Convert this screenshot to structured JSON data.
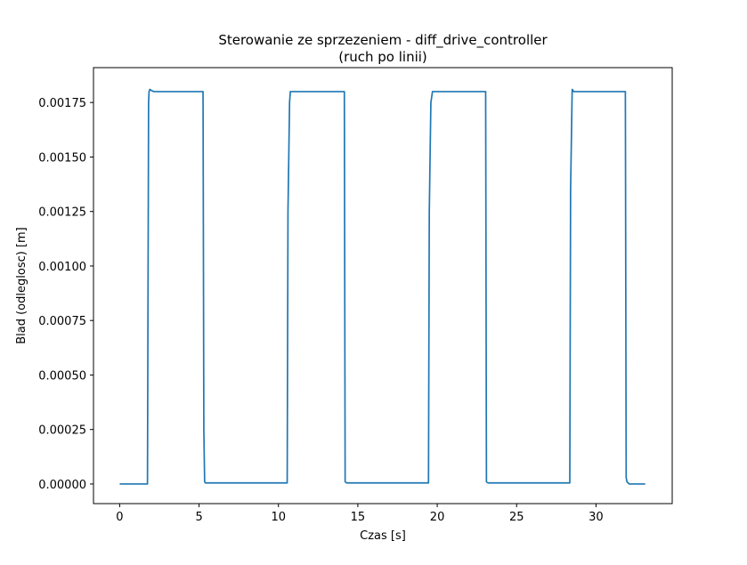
{
  "chart_data": {
    "type": "line",
    "title_line1": "Sterowanie ze sprzezeniem - diff_drive_controller",
    "title_line2": "(ruch po linii)",
    "xlabel": "Czas [s]",
    "ylabel": "Blad (odleglosc) [m]",
    "xlim": [
      -1.65,
      34.8
    ],
    "ylim": [
      -9e-05,
      0.00191
    ],
    "xticks": [
      0,
      5,
      10,
      15,
      20,
      25,
      30
    ],
    "xtick_labels": [
      "0",
      "5",
      "10",
      "15",
      "20",
      "25",
      "30"
    ],
    "yticks": [
      0,
      0.00025,
      0.0005,
      0.00075,
      0.001,
      0.00125,
      0.0015,
      0.00175
    ],
    "ytick_labels": [
      "0.00000",
      "0.00025",
      "0.00050",
      "0.00075",
      "0.00100",
      "0.00125",
      "0.00150",
      "0.00175"
    ],
    "grid": false,
    "series": [
      {
        "color": "#1f77b4",
        "x": [
          0,
          1.75,
          1.82,
          1.85,
          1.9,
          2.0,
          2.15,
          5.25,
          5.3,
          5.35,
          5.4,
          5.5,
          10.55,
          10.6,
          10.7,
          10.75,
          14.15,
          14.2,
          14.3,
          14.4,
          19.45,
          19.5,
          19.6,
          19.7,
          23.05,
          23.1,
          23.2,
          23.3,
          28.35,
          28.4,
          28.5,
          28.6,
          31.85,
          31.9,
          31.95,
          32.1,
          33.1
        ],
        "y": [
          0,
          0,
          0.00175,
          0.0018,
          0.00181,
          0.001805,
          0.0018,
          0.0018,
          0.00025,
          1e-05,
          5e-06,
          5e-06,
          5e-06,
          0.00125,
          0.00175,
          0.0018,
          0.0018,
          1e-05,
          5e-06,
          5e-06,
          5e-06,
          0.00125,
          0.00175,
          0.0018,
          0.0018,
          1e-05,
          5e-06,
          5e-06,
          5e-06,
          0.00135,
          0.00181,
          0.0018,
          0.0018,
          3e-05,
          1e-05,
          0,
          0
        ]
      }
    ]
  }
}
